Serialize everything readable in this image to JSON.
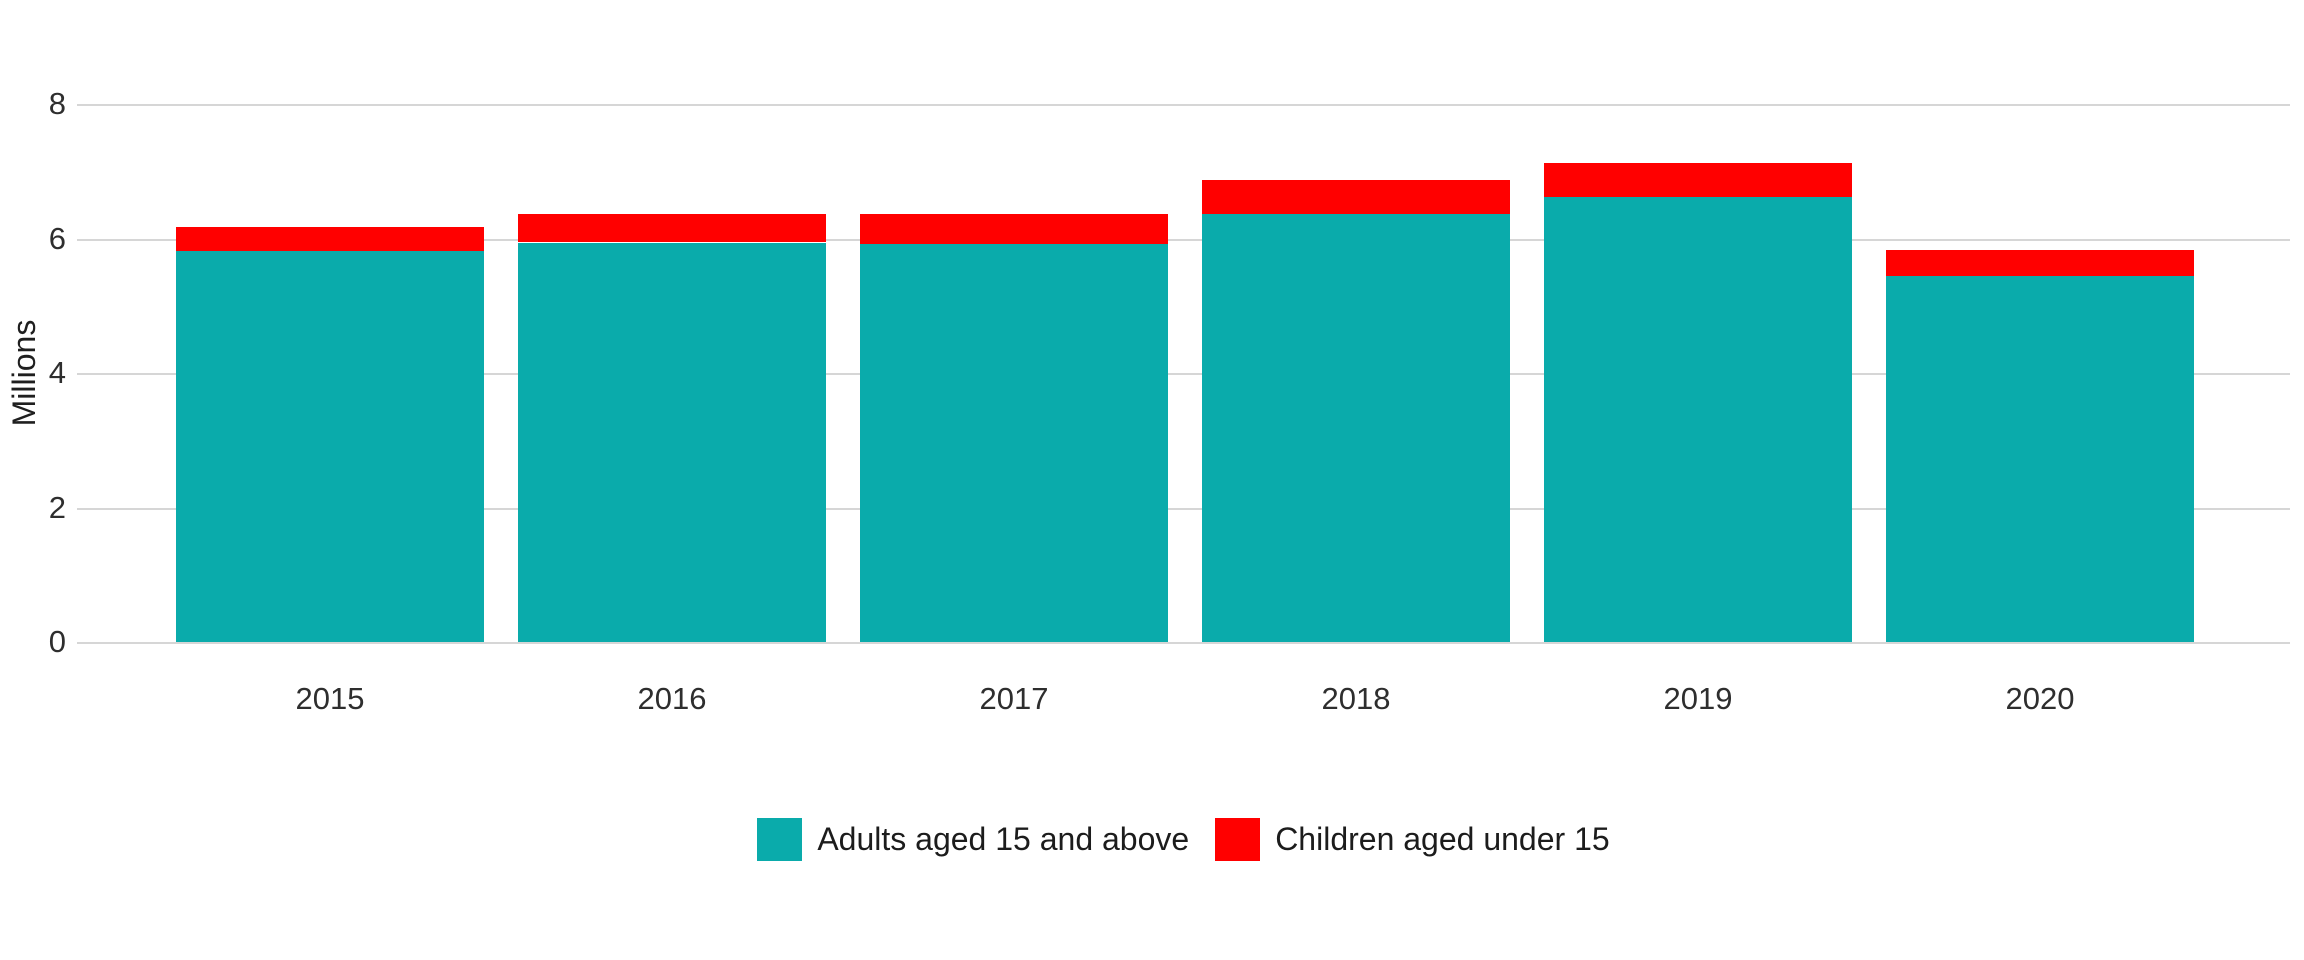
{
  "chart_data": {
    "type": "bar",
    "stacked": true,
    "title": "",
    "xlabel": "",
    "ylabel": "Millions",
    "categories": [
      "2015",
      "2016",
      "2017",
      "2018",
      "2019",
      "2020"
    ],
    "series": [
      {
        "name": "Adults aged 15 and above",
        "color": "#0aabab",
        "values": [
          5.82,
          5.94,
          5.93,
          6.36,
          6.62,
          5.44
        ]
      },
      {
        "name": "Children aged under 15",
        "color": "#ff0000",
        "values": [
          0.35,
          0.42,
          0.44,
          0.51,
          0.5,
          0.39
        ]
      }
    ],
    "ylim": [
      0,
      8
    ],
    "yticks": [
      0,
      2,
      4,
      6,
      8
    ],
    "grid": true,
    "legend_position": "bottom-center"
  },
  "colors": {
    "grid": "#d6d6d6",
    "axis_text": "#2e2e2e",
    "legend_text": "#1c1c1c",
    "background": "#ffffff",
    "adults": "#0aabab",
    "children": "#ff0000"
  }
}
